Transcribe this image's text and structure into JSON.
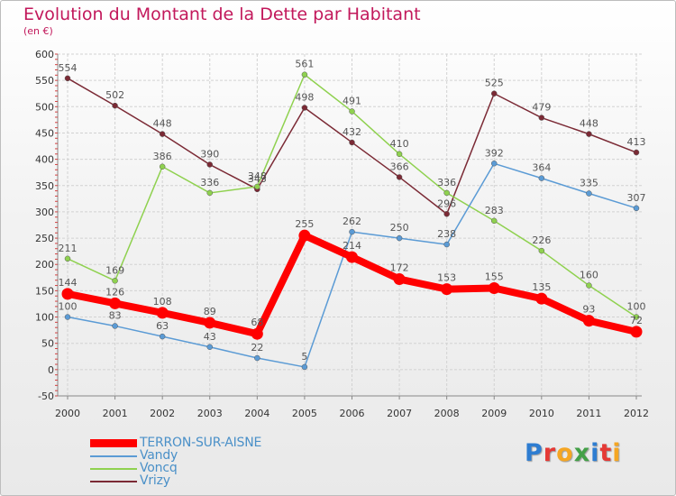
{
  "header": {
    "title": "Evolution du Montant de la Dette par Habitant",
    "unit": "(en €)"
  },
  "logo": {
    "text": "Proxiti",
    "letter_colors": [
      "#2e7dd1",
      "#e53935",
      "#f5a623",
      "#43a047",
      "#2e7dd1",
      "#e53935",
      "#f5a623"
    ]
  },
  "chart_data": {
    "type": "line",
    "title": "Evolution du Montant de la Dette par Habitant",
    "ylabel": "(en €)",
    "xlabel": "",
    "ylim": [
      -50,
      600
    ],
    "yticks": [
      -50,
      0,
      50,
      100,
      150,
      200,
      250,
      300,
      350,
      400,
      450,
      500,
      550,
      600
    ],
    "grid": true,
    "legend_position": "bottom-left",
    "x": [
      "2000",
      "2001",
      "2002",
      "2003",
      "2004",
      "2005",
      "2006",
      "2007",
      "2008",
      "2009",
      "2010",
      "2011",
      "2012"
    ],
    "series": [
      {
        "name": "Vrizy",
        "color": "#7b2a35",
        "values": [
          554,
          502,
          448,
          390,
          343,
          498,
          432,
          366,
          296,
          525,
          479,
          448,
          413
        ]
      },
      {
        "name": "Voncq",
        "color": "#8fd14f",
        "values": [
          211,
          169,
          386,
          336,
          348,
          561,
          491,
          410,
          336,
          283,
          226,
          160,
          100
        ]
      },
      {
        "name": "Vandy",
        "color": "#5b9bd5",
        "values": [
          100,
          83,
          63,
          43,
          22,
          5,
          262,
          250,
          238,
          392,
          364,
          335,
          307
        ]
      },
      {
        "name": "TERRON-SUR-AISNE",
        "color": "#ff0000",
        "values": [
          144,
          126,
          108,
          89,
          68,
          255,
          214,
          172,
          153,
          155,
          135,
          93,
          72
        ]
      }
    ]
  },
  "legend": [
    {
      "name": "TERRON-SUR-AISNE",
      "color": "#ff0000"
    },
    {
      "name": "Vandy",
      "color": "#5b9bd5"
    },
    {
      "name": "Voncq",
      "color": "#8fd14f"
    },
    {
      "name": "Vrizy",
      "color": "#7b2a35"
    }
  ]
}
